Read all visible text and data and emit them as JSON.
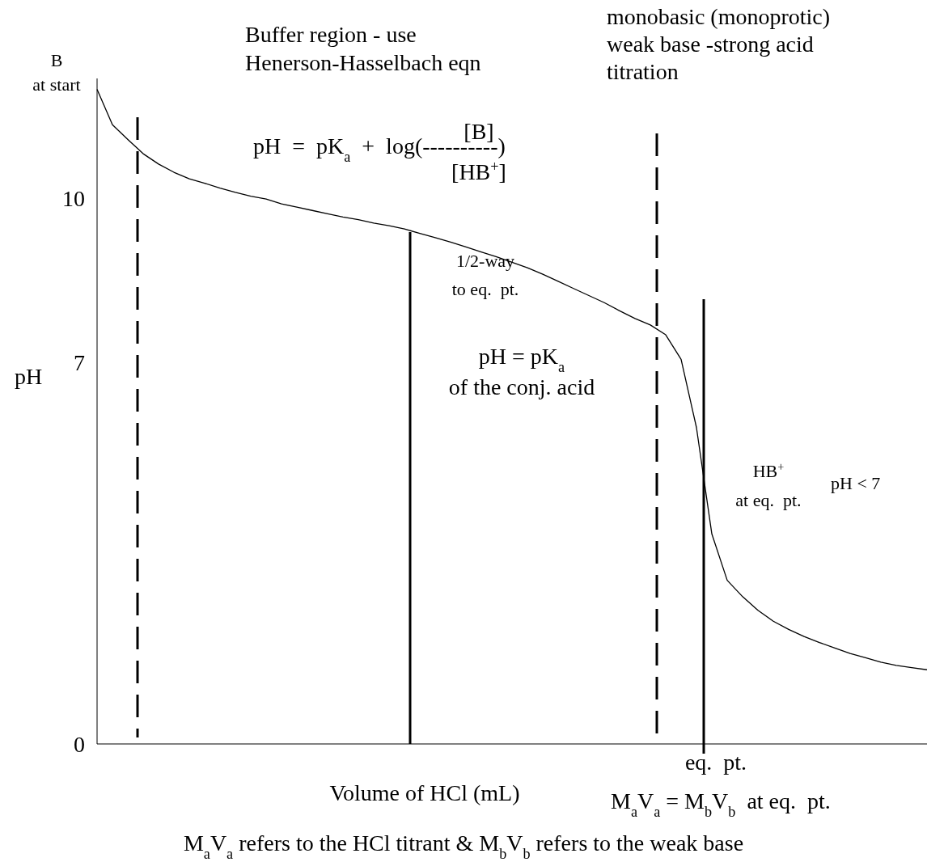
{
  "chart_data": {
    "type": "line",
    "xlabel": "Volume of HCl (mL)",
    "ylabel": "pH",
    "tick_labels": "y",
    "categories": [
      null,
      null,
      null,
      null,
      null,
      null,
      null,
      null,
      null,
      null,
      null,
      null,
      null,
      null,
      null,
      null,
      null,
      null,
      null,
      null,
      null,
      null,
      null,
      null,
      null,
      null,
      null,
      null,
      null,
      null,
      null,
      null,
      null,
      null,
      null,
      null,
      null,
      null,
      null,
      null,
      null,
      null,
      null,
      null,
      null,
      null,
      null,
      null,
      null,
      null,
      null,
      null,
      null,
      null,
      null
    ],
    "series": [
      {
        "color": "#000000",
        "values": [
          12.0,
          11.35,
          11.08,
          10.82,
          10.63,
          10.48,
          10.36,
          10.28,
          10.19,
          10.11,
          10.04,
          9.99,
          9.9,
          9.84,
          9.78,
          9.72,
          9.66,
          9.61,
          9.55,
          9.5,
          9.44,
          9.36,
          9.28,
          9.2,
          9.11,
          9.02,
          8.93,
          8.83,
          8.73,
          8.61,
          8.48,
          8.35,
          8.22,
          8.09,
          7.94,
          7.8,
          7.68,
          7.5,
          7.05,
          5.8,
          3.85,
          3.0,
          2.7,
          2.45,
          2.25,
          2.1,
          1.97,
          1.86,
          1.76,
          1.66,
          1.58,
          1.5,
          1.44,
          1.4,
          1.36
        ]
      }
    ],
    "ylim": [
      0,
      12.2
    ],
    "yticks": [
      0,
      7,
      10
    ],
    "annotations": [
      "B\nat start",
      "Buffer region - use\nHenerson-Hasselbach eqn",
      "pH  =  pK$_{a}$  +  log(----------)",
      "[B]",
      "[HB$^{+}$]",
      "monobasic (monoprotic)\nweak base -strong acid\ntitration",
      "pH = pK$_{a}$\nof the conj. acid",
      "HB$^{+}$\nat eq.  pt.",
      "pH < 7",
      "M$_{a}$V$_{a}$ = M$_{b}$V$_{b}$  at eq.  pt.",
      "M$_{a}$V$_{a}$ refers to the HCl titrant & M$_{b}$V$_{b}$ refers to the weak base",
      "1/2-way\nto eq.  pt.",
      "eq.  pt."
    ]
  }
}
